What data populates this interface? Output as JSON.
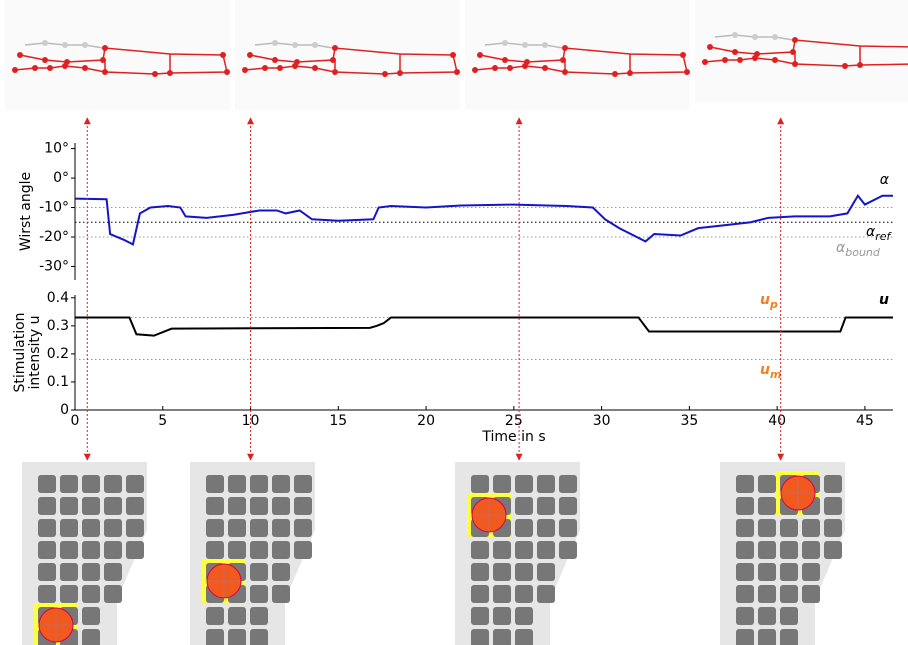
{
  "chart_data": [
    {
      "type": "line",
      "ylabel": "Wirst angle",
      "xlim": [
        0,
        46.6
      ],
      "ylim": [
        -34.6,
        11.9
      ],
      "yticks": [
        {
          "value": 10,
          "label": "10°"
        },
        {
          "value": 0,
          "label": "0°"
        },
        {
          "value": -10,
          "label": "-10°"
        },
        {
          "value": -20,
          "label": "-20°"
        },
        {
          "value": -30,
          "label": "-30°"
        }
      ],
      "series": [
        {
          "name": "α",
          "color": "#1515c8",
          "x": [
            0,
            1.8,
            2.0,
            2.8,
            3.3,
            3.7,
            4.3,
            5.3,
            6.0,
            6.3,
            7.5,
            9.0,
            10.5,
            11.5,
            12.0,
            12.8,
            13.5,
            15.0,
            17.0,
            17.3,
            18.0,
            20.0,
            22.0,
            25.0,
            28.0,
            29.5,
            30.2,
            31.0,
            32.0,
            32.5,
            33.0,
            34.5,
            35.5,
            37.0,
            38.5,
            39.5,
            41.0,
            43.0,
            44.0,
            44.6,
            45.0,
            46.0,
            46.6
          ],
          "values": [
            -7,
            -7.2,
            -19,
            -21,
            -22.5,
            -12,
            -10,
            -9.5,
            -10,
            -13,
            -13.5,
            -12.5,
            -11,
            -11,
            -12,
            -11,
            -14,
            -14.5,
            -14,
            -10,
            -9.5,
            -10,
            -9.3,
            -9,
            -9.5,
            -10,
            -14,
            -17,
            -20,
            -21.5,
            -19,
            -19.5,
            -17,
            -16,
            -15,
            -13.5,
            -13,
            -13,
            -12,
            -6,
            -9,
            -6,
            -6
          ]
        }
      ],
      "reference_lines": [
        {
          "name": "α",
          "subscript": "ref",
          "color": "#000000",
          "values": [
            -15
          ]
        },
        {
          "name": "α",
          "subscript": "bound",
          "color": "#999999",
          "values": [
            -10,
            -20
          ]
        }
      ]
    },
    {
      "type": "line",
      "ylabel": [
        "Stimulation",
        "intensity u"
      ],
      "xlabel": "Time in s",
      "xlim": [
        0,
        46.6
      ],
      "ylim": [
        0,
        0.41
      ],
      "xticks": [
        0,
        5,
        10,
        15,
        20,
        25,
        30,
        35,
        40,
        45
      ],
      "yticks": [
        0,
        0.1,
        0.2,
        0.3,
        0.4
      ],
      "series": [
        {
          "name": "u",
          "color": "#000000",
          "x": [
            0,
            3.1,
            3.5,
            4.5,
            5.5,
            16.8,
            17.2,
            17.6,
            18.0,
            32.1,
            32.7,
            43.6,
            43.9,
            46.6
          ],
          "values": [
            0.33,
            0.33,
            0.27,
            0.265,
            0.29,
            0.293,
            0.3,
            0.31,
            0.33,
            0.33,
            0.28,
            0.28,
            0.33,
            0.33
          ]
        }
      ],
      "reference_lines": [
        {
          "name": "u",
          "subscript": "p",
          "color": "#f08020",
          "values": [
            0.33
          ]
        },
        {
          "name": "u",
          "subscript": "m",
          "color": "#f08020",
          "values": [
            0.18
          ]
        }
      ],
      "time_markers": [
        0.7,
        10,
        25.3,
        40.2
      ],
      "marker_color": "#e02020"
    }
  ]
}
